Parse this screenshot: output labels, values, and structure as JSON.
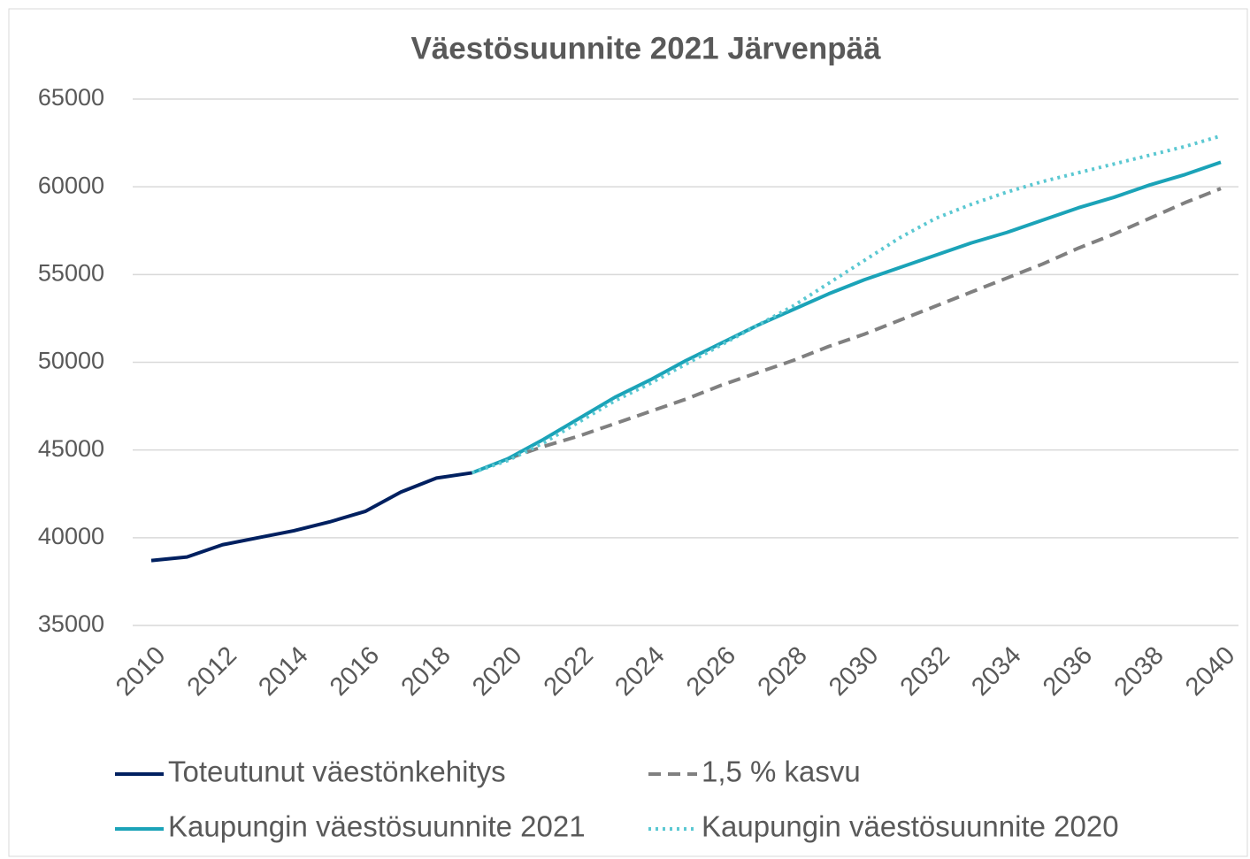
{
  "chart_data": {
    "type": "line",
    "title": "Väestösuunnite 2021 Järvenpää",
    "x": [
      2010,
      2011,
      2012,
      2013,
      2014,
      2015,
      2016,
      2017,
      2018,
      2019,
      2020,
      2021,
      2022,
      2023,
      2024,
      2025,
      2026,
      2027,
      2028,
      2029,
      2030,
      2031,
      2032,
      2033,
      2034,
      2035,
      2036,
      2037,
      2038,
      2039,
      2040
    ],
    "series": [
      {
        "name": "Toteutunut väestönkehitys",
        "color": "#002060",
        "dash": "solid",
        "values": [
          38700,
          38900,
          39600,
          40000,
          40400,
          40900,
          41500,
          42600,
          43400,
          43700,
          null,
          null,
          null,
          null,
          null,
          null,
          null,
          null,
          null,
          null,
          null,
          null,
          null,
          null,
          null,
          null,
          null,
          null,
          null,
          null,
          null
        ]
      },
      {
        "name": "1,5 % kasvu",
        "color": "#808080",
        "dash": "dashed",
        "values": [
          null,
          null,
          null,
          null,
          null,
          null,
          null,
          null,
          null,
          null,
          44500,
          45200,
          45800,
          46500,
          47200,
          47900,
          48700,
          49400,
          50100,
          50900,
          51600,
          52400,
          53200,
          54000,
          54800,
          55600,
          56500,
          57300,
          58200,
          59100,
          59900
        ]
      },
      {
        "name": "Kaupungin väestösuunnite 2021",
        "color": "#1ba3b8",
        "dash": "solid",
        "values": [
          null,
          null,
          null,
          null,
          null,
          null,
          null,
          null,
          null,
          43700,
          44500,
          45600,
          46800,
          48000,
          49000,
          50100,
          51100,
          52100,
          53000,
          53900,
          54700,
          55400,
          56100,
          56800,
          57400,
          58100,
          58800,
          59400,
          60100,
          60700,
          61400
        ]
      },
      {
        "name": "Kaupungin väestösuunnite 2020",
        "color": "#5bc8d2",
        "dash": "dotted",
        "values": [
          null,
          null,
          null,
          null,
          null,
          null,
          null,
          null,
          null,
          43700,
          44400,
          45400,
          46600,
          47800,
          48800,
          49900,
          51000,
          52100,
          53200,
          54500,
          55800,
          57100,
          58200,
          59000,
          59700,
          60300,
          60800,
          61300,
          61800,
          62300,
          62900
        ]
      }
    ],
    "xlim": [
      2010,
      2040
    ],
    "xticks": [
      2010,
      2012,
      2014,
      2016,
      2018,
      2020,
      2022,
      2024,
      2026,
      2028,
      2030,
      2032,
      2034,
      2036,
      2038,
      2040
    ],
    "ylim": [
      35000,
      65000
    ],
    "yticks": [
      35000,
      40000,
      45000,
      50000,
      55000,
      60000,
      65000
    ],
    "grid": true
  }
}
